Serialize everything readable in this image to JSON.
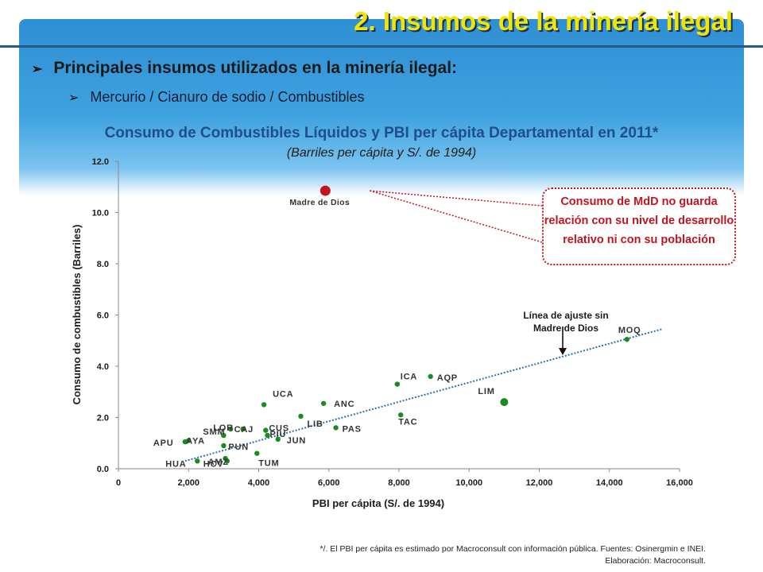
{
  "slide": {
    "title": "2.  Insumos de la minería ilegal",
    "bullet_main": "Principales insumos utilizados en la minería ilegal:",
    "bullet_sub": "Mercurio / Cianuro de sodio / Combustibles"
  },
  "callout": {
    "text": "Consumo de MdD no guarda relación con su nivel de desarrollo relativo ni con su población"
  },
  "fit_label": "Línea de ajuste sin Madre de Dios",
  "footnote": {
    "line1": "*/. El PBI per cápita es estimado por Macroconsult con información pública. Fuentes: Osinergmin e INEI.",
    "line2": "Elaboración: Macroconsult."
  },
  "colors": {
    "accent_green": "#1a8a22",
    "highlight_red": "#c0151f",
    "trend_blue": "#2e6fb0",
    "title_blue": "#1f4e8c",
    "title_yellow": "#f2e600"
  },
  "chart_data": {
    "type": "scatter",
    "title": "Consumo de Combustibles Líquidos y PBI per cápita Departamental en 2011*",
    "subtitle": "(Barriles per cápita y S/. de 1994)",
    "xlabel": "PBI per cápita (S/. de 1994)",
    "ylabel": "Consumo de combustibles (Barriles)",
    "xlim": [
      0,
      16000
    ],
    "ylim": [
      0,
      12
    ],
    "xticks": [
      0,
      2000,
      4000,
      6000,
      8000,
      10000,
      12000,
      14000,
      16000
    ],
    "xtick_labels": [
      "0",
      "2,000",
      "4,000",
      "6,000",
      "8,000",
      "10,000",
      "12,000",
      "14,000",
      "16,000"
    ],
    "yticks": [
      0,
      2,
      4,
      6,
      8,
      10,
      12
    ],
    "ytick_labels": [
      "0.0",
      "2.0",
      "4.0",
      "6.0",
      "8.0",
      "10.0",
      "12.0"
    ],
    "grid": false,
    "trendline": {
      "x": [
        1900,
        15500
      ],
      "y": [
        0.3,
        5.45
      ]
    },
    "points": [
      {
        "label": "Madre de Dios",
        "x": 5900,
        "y": 10.85,
        "highlight": true
      },
      {
        "label": "MOQ",
        "x": 14500,
        "y": 5.05
      },
      {
        "label": "LIM",
        "x": 11000,
        "y": 2.6
      },
      {
        "label": "AQP",
        "x": 8900,
        "y": 3.6
      },
      {
        "label": "ICA",
        "x": 7950,
        "y": 3.3
      },
      {
        "label": "TAC",
        "x": 8050,
        "y": 2.1
      },
      {
        "label": "ANC",
        "x": 5850,
        "y": 2.55
      },
      {
        "label": "PAS",
        "x": 6200,
        "y": 1.6
      },
      {
        "label": "LIB",
        "x": 5200,
        "y": 2.05
      },
      {
        "label": "UCA",
        "x": 4150,
        "y": 2.5
      },
      {
        "label": "CUS",
        "x": 4200,
        "y": 1.5
      },
      {
        "label": "PIU",
        "x": 4250,
        "y": 1.3
      },
      {
        "label": "JUN",
        "x": 4550,
        "y": 1.15
      },
      {
        "label": "TUM",
        "x": 3950,
        "y": 0.6
      },
      {
        "label": "CAJ",
        "x": 3550,
        "y": 1.55
      },
      {
        "label": "LOR",
        "x": 3200,
        "y": 1.55
      },
      {
        "label": "SMM",
        "x": 3000,
        "y": 1.3
      },
      {
        "label": "PUN",
        "x": 3000,
        "y": 0.9
      },
      {
        "label": "AMZ",
        "x": 3050,
        "y": 0.4
      },
      {
        "label": "HCV",
        "x": 3100,
        "y": 0.3
      },
      {
        "label": "AYA",
        "x": 2000,
        "y": 1.1
      },
      {
        "label": "APU",
        "x": 1900,
        "y": 1.05
      },
      {
        "label": "HUA",
        "x": 2250,
        "y": 0.3
      }
    ]
  }
}
